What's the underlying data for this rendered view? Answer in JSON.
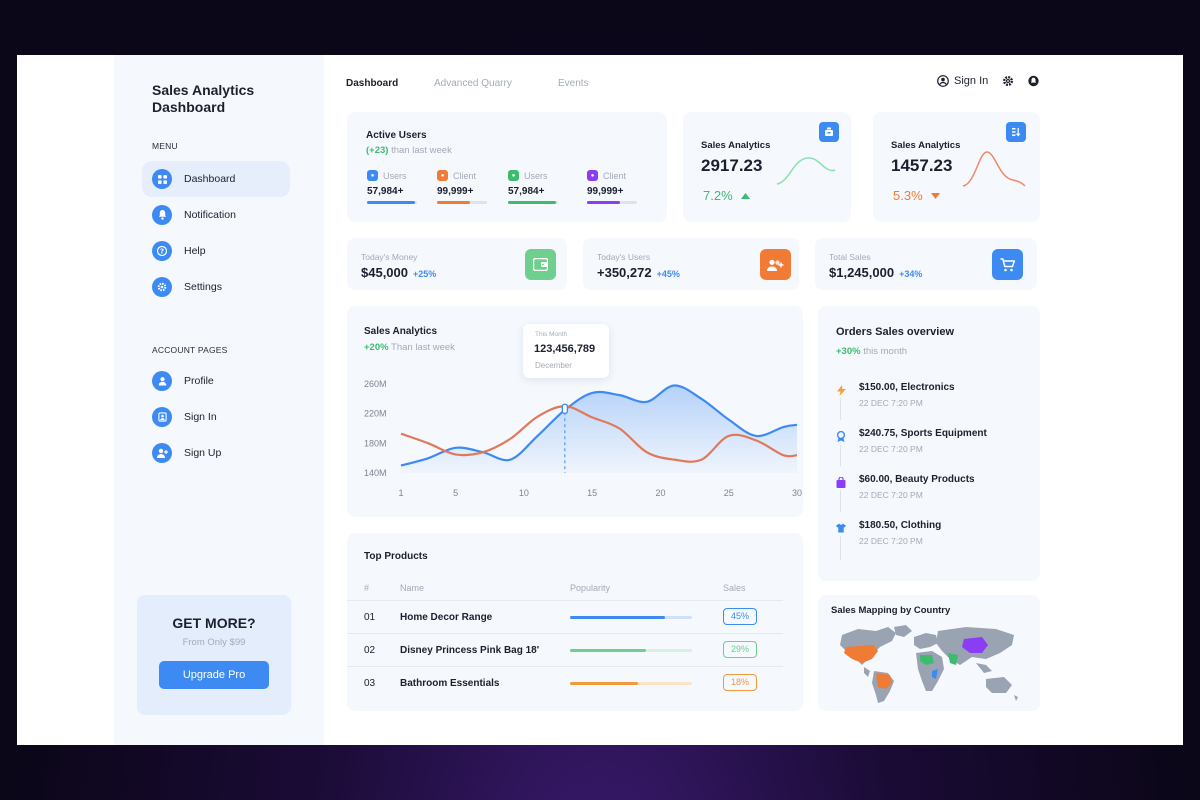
{
  "sidebar": {
    "brand_line1": "Sales Analytics",
    "brand_line2": "Dashboard",
    "menu_heading": "MENU",
    "menu": [
      {
        "label": "Dashboard",
        "icon": "grid-icon",
        "active": true
      },
      {
        "label": "Notification",
        "icon": "bell-icon"
      },
      {
        "label": "Help",
        "icon": "question-icon"
      },
      {
        "label": "Settings",
        "icon": "gear-icon"
      }
    ],
    "account_heading": "ACCOUNT PAGES",
    "account": [
      {
        "label": "Profile",
        "icon": "user-icon"
      },
      {
        "label": "Sign In",
        "icon": "signin-icon"
      },
      {
        "label": "Sign Up",
        "icon": "add-user-icon"
      }
    ],
    "promo": {
      "title": "GET MORE?",
      "subtitle": "From Only $99",
      "button": "Upgrade Pro"
    }
  },
  "header": {
    "tabs": [
      {
        "label": "Dashboard",
        "active": true
      },
      {
        "label": "Advanced Quarry"
      },
      {
        "label": "Events"
      }
    ],
    "sign_in": "Sign In"
  },
  "active_users": {
    "title": "Active Users",
    "delta": "(+23)",
    "delta_suffix": "than last week",
    "stats": [
      {
        "label": "Users",
        "value": "57,984+",
        "color": "#3d8bf2",
        "fill": 0.95
      },
      {
        "label": "Client",
        "value": "99,999+",
        "color": "#f07b35",
        "fill": 0.65
      },
      {
        "label": "Users",
        "value": "57,984+",
        "color": "#3dbb6e",
        "fill": 0.95
      },
      {
        "label": "Client",
        "value": "99,999+",
        "color": "#8a3df2",
        "fill": 0.65
      }
    ]
  },
  "sales_analytics_cards": [
    {
      "title": "Sales Analytics",
      "value": "2917.23",
      "pct": "7.2%",
      "trend": "up",
      "color": "#3dbb6e",
      "icon": "scale-icon"
    },
    {
      "title": "Sales Analytics",
      "value": "1457.23",
      "pct": "5.3%",
      "trend": "down",
      "color": "#f07b35",
      "icon": "sort-icon"
    }
  ],
  "summary_stats": [
    {
      "label": "Today's Money",
      "value": "$45,000",
      "delta": "+25%",
      "icon": "wallet-icon",
      "color": "#6fcf8f"
    },
    {
      "label": "Today's Users",
      "value": "+350,272",
      "delta": "+45%",
      "icon": "users-add-icon",
      "color": "#f07b35"
    },
    {
      "label": "Total Sales",
      "value": "$1,245,000",
      "delta": "+34%",
      "icon": "cart-icon",
      "color": "#3d8bf2"
    }
  ],
  "analytics": {
    "title": "Sales Analytics",
    "delta": "+20%",
    "delta_suffix": "Than last week",
    "tooltip": {
      "label": "This Month",
      "value": "123,456,789",
      "sub": "December"
    }
  },
  "chart_data": {
    "type": "line",
    "title": "Sales Analytics",
    "x_ticks": [
      1,
      5,
      10,
      15,
      20,
      25,
      30
    ],
    "y_ticks": [
      "260M",
      "220M",
      "180M",
      "140M"
    ],
    "ylim": [
      140,
      260
    ],
    "xlim": [
      1,
      30
    ],
    "series": [
      {
        "color": "#3d8bf2",
        "area": true,
        "x": [
          1,
          3,
          5,
          7,
          9,
          11,
          13,
          15,
          17,
          19,
          21,
          23,
          25,
          27,
          29,
          30
        ],
        "y": [
          150,
          160,
          174,
          168,
          158,
          190,
          225,
          248,
          245,
          236,
          258,
          240,
          212,
          190,
          202,
          205
        ]
      },
      {
        "color": "#e0795a",
        "area": false,
        "x": [
          1,
          3,
          5,
          7,
          9,
          11,
          13,
          15,
          17,
          19,
          21,
          23,
          25,
          27,
          29,
          30
        ],
        "y": [
          193,
          180,
          165,
          168,
          186,
          216,
          230,
          215,
          200,
          168,
          158,
          158,
          190,
          184,
          164,
          164
        ]
      }
    ],
    "marker_x": 13
  },
  "top_products": {
    "title": "Top Products",
    "columns": [
      "#",
      "Name",
      "Popularity",
      "Sales"
    ],
    "rows": [
      {
        "num": "01",
        "name": "Home Decor Range",
        "popularity": 0.78,
        "sales": "45%",
        "color": "#3d8bf2",
        "track": "#cfe0fb"
      },
      {
        "num": "02",
        "name": "Disney Princess Pink Bag 18'",
        "popularity": 0.62,
        "sales": "29%",
        "color": "#6fcf8f",
        "track": "#d6f1df"
      },
      {
        "num": "03",
        "name": "Bathroom Essentials",
        "popularity": 0.56,
        "sales": "18%",
        "color": "#f09a3e",
        "track": "#fbe3c7"
      }
    ]
  },
  "orders": {
    "title": "Orders Sales overview",
    "delta": "+30%",
    "delta_suffix": "this month",
    "items": [
      {
        "text": "$150.00, Electronics",
        "time": "22 DEC 7:20 PM",
        "icon": "bolt-icon",
        "color": "#f0a23e"
      },
      {
        "text": "$240.75, Sports Equipment",
        "time": "22 DEC 7:20 PM",
        "icon": "medal-icon",
        "color": "#3d8bf2"
      },
      {
        "text": "$60.00, Beauty Products",
        "time": "22 DEC 7:20 PM",
        "icon": "bag-icon",
        "color": "#8a3df2"
      },
      {
        "text": "$180.50, Clothing",
        "time": "22 DEC 7:20 PM",
        "icon": "shirt-icon",
        "color": "#3d8bf2"
      }
    ]
  },
  "map": {
    "title": "Sales Mapping by Country"
  }
}
